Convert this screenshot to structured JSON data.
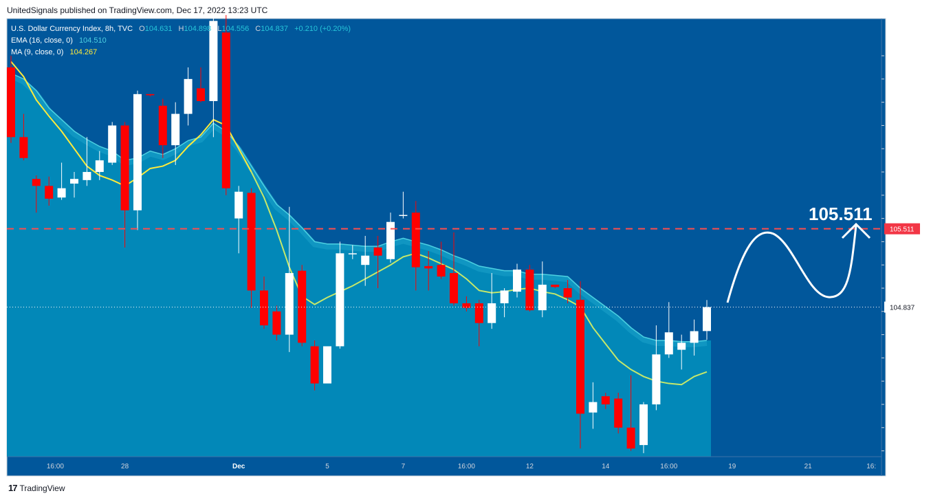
{
  "header": {
    "published_text": "UnitedSignals published on TradingView.com, Dec 17, 2022 13:23 UTC"
  },
  "footer": {
    "brand_logo": "17",
    "brand_name": "TradingView"
  },
  "colors": {
    "background": "#01579b",
    "ribbon_fill": "#0288b8",
    "ribbon_band": "#1aa0c8",
    "up_candle": "#ffffff",
    "down_candle": "#ff0000",
    "ema_line": "#4dd0e1",
    "ma_line": "#c6e86a",
    "ma_line_early": "#ffeb3b",
    "target_line": "#ff4d4d",
    "annotation": "#ffffff"
  },
  "chart_data": {
    "type": "candlestick",
    "symbol_line": "U.S. Dollar Currency Index, 8h, TVC",
    "ohlc_labels": {
      "o": "O",
      "h": "H",
      "l": "L",
      "c": "C"
    },
    "ohlc": {
      "open": "104.631",
      "high": "104.898",
      "low": "104.556",
      "close": "104.837",
      "change": "+0.210 (+0.20%)"
    },
    "ema_legend": {
      "label": "EMA (16, close, 0)",
      "value": "104.510"
    },
    "ma_legend": {
      "label": "MA (9, close, 0)",
      "value": "104.267"
    },
    "currency": "USD",
    "y_ticks": [
      "107.000",
      "106.800",
      "106.600",
      "106.400",
      "106.200",
      "106.000",
      "105.800",
      "105.600",
      "105.400",
      "105.200",
      "105.000",
      "104.800",
      "104.600",
      "104.400",
      "104.200",
      "104.000",
      "103.800",
      "103.600"
    ],
    "ylim": [
      103.55,
      107.32
    ],
    "x_ticks": [
      {
        "label": "16:00",
        "slot": 3.5
      },
      {
        "label": "28",
        "slot": 9
      },
      {
        "label": "Dec",
        "slot": 18
      },
      {
        "label": "5",
        "slot": 25
      },
      {
        "label": "7",
        "slot": 31
      },
      {
        "label": "16:00",
        "slot": 36
      },
      {
        "label": "12",
        "slot": 41
      },
      {
        "label": "14",
        "slot": 47
      },
      {
        "label": "16:00",
        "slot": 52
      },
      {
        "label": "19",
        "slot": 57
      },
      {
        "label": "21",
        "slot": 63
      },
      {
        "label": "16:",
        "slot": 68
      }
    ],
    "last_price": "104.837",
    "target_price": "105.511",
    "target_annotation": "105.511",
    "candles": [
      {
        "o": 106.9,
        "h": 107.0,
        "l": 106.25,
        "c": 106.3
      },
      {
        "o": 106.3,
        "h": 106.5,
        "l": 106.1,
        "c": 106.12
      },
      {
        "o": 105.94,
        "h": 105.97,
        "l": 105.65,
        "c": 105.88
      },
      {
        "o": 105.88,
        "h": 105.96,
        "l": 105.71,
        "c": 105.77
      },
      {
        "o": 105.78,
        "h": 106.08,
        "l": 105.76,
        "c": 105.86
      },
      {
        "o": 105.9,
        "h": 106.0,
        "l": 105.78,
        "c": 105.94
      },
      {
        "o": 105.93,
        "h": 106.3,
        "l": 105.88,
        "c": 106.0
      },
      {
        "o": 106.0,
        "h": 106.18,
        "l": 105.93,
        "c": 106.1
      },
      {
        "o": 106.08,
        "h": 106.43,
        "l": 106.06,
        "c": 106.4
      },
      {
        "o": 106.4,
        "h": 106.43,
        "l": 105.35,
        "c": 105.67
      },
      {
        "o": 105.67,
        "h": 106.7,
        "l": 105.5,
        "c": 106.67
      },
      {
        "o": 106.67,
        "h": 106.67,
        "l": 106.65,
        "c": 106.66
      },
      {
        "o": 106.57,
        "h": 106.63,
        "l": 106.12,
        "c": 106.23
      },
      {
        "o": 106.23,
        "h": 106.6,
        "l": 106.06,
        "c": 106.5
      },
      {
        "o": 106.5,
        "h": 106.9,
        "l": 106.4,
        "c": 106.8
      },
      {
        "o": 106.72,
        "h": 106.9,
        "l": 106.6,
        "c": 106.61
      },
      {
        "o": 106.61,
        "h": 107.4,
        "l": 106.3,
        "c": 107.3
      },
      {
        "o": 107.2,
        "h": 107.35,
        "l": 105.8,
        "c": 105.86
      },
      {
        "o": 105.6,
        "h": 105.88,
        "l": 105.3,
        "c": 105.83
      },
      {
        "o": 105.82,
        "h": 105.86,
        "l": 104.83,
        "c": 104.98
      },
      {
        "o": 104.98,
        "h": 105.1,
        "l": 104.65,
        "c": 104.68
      },
      {
        "o": 104.8,
        "h": 104.85,
        "l": 104.55,
        "c": 104.6
      },
      {
        "o": 104.6,
        "h": 105.7,
        "l": 104.45,
        "c": 105.13
      },
      {
        "o": 105.15,
        "h": 105.2,
        "l": 104.5,
        "c": 104.53
      },
      {
        "o": 104.5,
        "h": 104.55,
        "l": 104.12,
        "c": 104.18
      },
      {
        "o": 104.18,
        "h": 104.5,
        "l": 104.18,
        "c": 104.5
      },
      {
        "o": 104.5,
        "h": 105.4,
        "l": 104.48,
        "c": 105.3
      },
      {
        "o": 105.3,
        "h": 105.37,
        "l": 105.25,
        "c": 105.3
      },
      {
        "o": 105.2,
        "h": 105.45,
        "l": 105.02,
        "c": 105.28
      },
      {
        "o": 105.35,
        "h": 105.45,
        "l": 105.0,
        "c": 105.28
      },
      {
        "o": 105.25,
        "h": 105.65,
        "l": 105.22,
        "c": 105.57
      },
      {
        "o": 105.63,
        "h": 105.83,
        "l": 105.6,
        "c": 105.63
      },
      {
        "o": 105.65,
        "h": 105.75,
        "l": 104.98,
        "c": 105.18
      },
      {
        "o": 105.19,
        "h": 105.32,
        "l": 104.98,
        "c": 105.17
      },
      {
        "o": 105.2,
        "h": 105.4,
        "l": 105.08,
        "c": 105.1
      },
      {
        "o": 105.13,
        "h": 105.48,
        "l": 104.85,
        "c": 104.87
      },
      {
        "o": 104.87,
        "h": 104.93,
        "l": 104.8,
        "c": 104.83
      },
      {
        "o": 104.87,
        "h": 104.9,
        "l": 104.5,
        "c": 104.7
      },
      {
        "o": 104.7,
        "h": 105.13,
        "l": 104.65,
        "c": 104.87
      },
      {
        "o": 104.87,
        "h": 105.0,
        "l": 104.75,
        "c": 104.98
      },
      {
        "o": 104.97,
        "h": 105.21,
        "l": 104.92,
        "c": 105.16
      },
      {
        "o": 105.16,
        "h": 105.2,
        "l": 104.8,
        "c": 104.81
      },
      {
        "o": 104.81,
        "h": 105.23,
        "l": 104.75,
        "c": 105.03
      },
      {
        "o": 105.03,
        "h": 105.03,
        "l": 105.0,
        "c": 105.01
      },
      {
        "o": 105.0,
        "h": 105.07,
        "l": 104.87,
        "c": 104.92
      },
      {
        "o": 104.9,
        "h": 105.06,
        "l": 103.62,
        "c": 103.92
      },
      {
        "o": 103.93,
        "h": 104.19,
        "l": 103.79,
        "c": 104.02
      },
      {
        "o": 104.07,
        "h": 104.1,
        "l": 103.96,
        "c": 104.0
      },
      {
        "o": 104.05,
        "h": 104.1,
        "l": 103.75,
        "c": 103.8
      },
      {
        "o": 103.8,
        "h": 104.25,
        "l": 103.6,
        "c": 103.62
      },
      {
        "o": 103.65,
        "h": 104.02,
        "l": 103.58,
        "c": 104.0
      },
      {
        "o": 104.0,
        "h": 104.68,
        "l": 103.95,
        "c": 104.43
      },
      {
        "o": 104.43,
        "h": 104.88,
        "l": 104.4,
        "c": 104.62
      },
      {
        "o": 104.47,
        "h": 104.6,
        "l": 104.3,
        "c": 104.53
      },
      {
        "o": 104.53,
        "h": 104.73,
        "l": 104.42,
        "c": 104.63
      },
      {
        "o": 104.631,
        "h": 104.898,
        "l": 104.556,
        "c": 104.837
      }
    ],
    "ema16": [
      106.85,
      106.8,
      106.7,
      106.55,
      106.45,
      106.35,
      106.28,
      106.22,
      106.18,
      106.1,
      106.12,
      106.18,
      106.15,
      106.2,
      106.27,
      106.3,
      106.42,
      106.35,
      106.22,
      106.05,
      105.88,
      105.72,
      105.63,
      105.52,
      105.4,
      105.38,
      105.38,
      105.37,
      105.36,
      105.36,
      105.4,
      105.43,
      105.4,
      105.37,
      105.33,
      105.28,
      105.24,
      105.19,
      105.17,
      105.15,
      105.15,
      105.12,
      105.12,
      105.11,
      105.1,
      105.0,
      104.92,
      104.84,
      104.76,
      104.66,
      104.58,
      104.55,
      104.55,
      104.54,
      104.54,
      104.55
    ],
    "ma9": [
      106.95,
      106.82,
      106.62,
      106.48,
      106.35,
      106.2,
      106.05,
      105.97,
      105.93,
      105.88,
      105.95,
      106.03,
      106.05,
      106.1,
      106.22,
      106.32,
      106.45,
      106.4,
      106.2,
      106.0,
      105.78,
      105.5,
      105.18,
      104.93,
      104.86,
      104.92,
      104.97,
      105.02,
      105.08,
      105.14,
      105.2,
      105.27,
      105.3,
      105.26,
      105.21,
      105.16,
      105.08,
      104.98,
      104.96,
      104.97,
      104.99,
      105.0,
      104.97,
      104.95,
      104.9,
      104.84,
      104.66,
      104.52,
      104.38,
      104.3,
      104.24,
      104.2,
      104.18,
      104.17,
      104.24,
      104.28
    ]
  }
}
